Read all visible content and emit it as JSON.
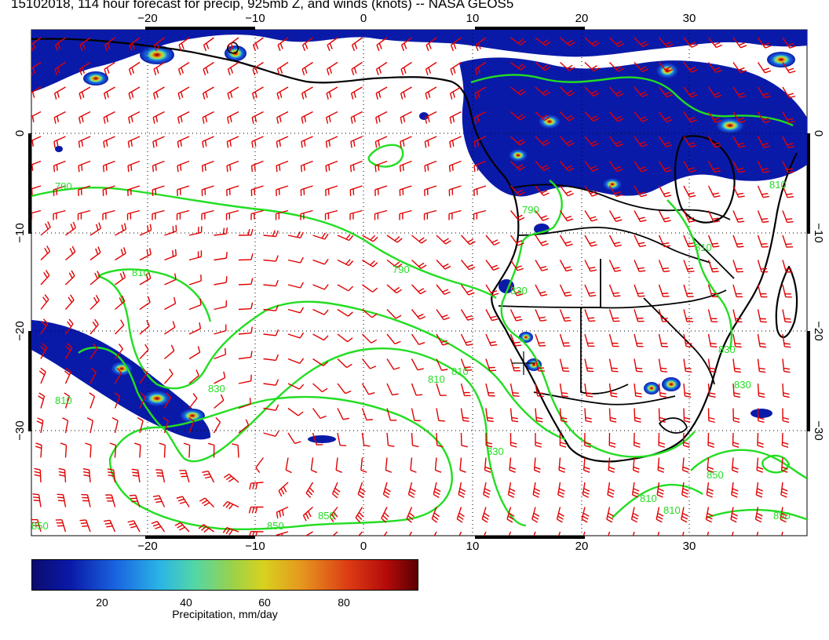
{
  "title": "15102018, 114 hour forecast for precip, 925mb Z, and winds (knots) -- NASA GEOS5",
  "map": {
    "lon_ticks_bottom": [
      "−20",
      "−10",
      "0",
      "10",
      "20",
      "30"
    ],
    "lon_ticks_top": [
      "−20",
      "−10",
      "0",
      "10",
      "20",
      "30"
    ],
    "lat_ticks_left": [
      "0",
      "−10",
      "−20",
      "−30"
    ],
    "lat_ticks_right": [
      "0",
      "−10",
      "−20",
      "−30"
    ],
    "contour_labels": [
      "790",
      "790",
      "810",
      "810",
      "810",
      "830",
      "830",
      "810",
      "850",
      "850",
      "850",
      "810",
      "810",
      "830",
      "830",
      "830",
      "790",
      "810",
      "810",
      "850",
      "850"
    ],
    "colors": {
      "precip_low": "#0a1aa8",
      "precip_high": "#5a0000",
      "contour": "#22dd22",
      "wind_barb": "#e00000",
      "coastline": "#000000"
    }
  },
  "colorbar": {
    "ticks": [
      "20",
      "40",
      "60",
      "80"
    ],
    "label": "Precipitation, mm/day"
  }
}
